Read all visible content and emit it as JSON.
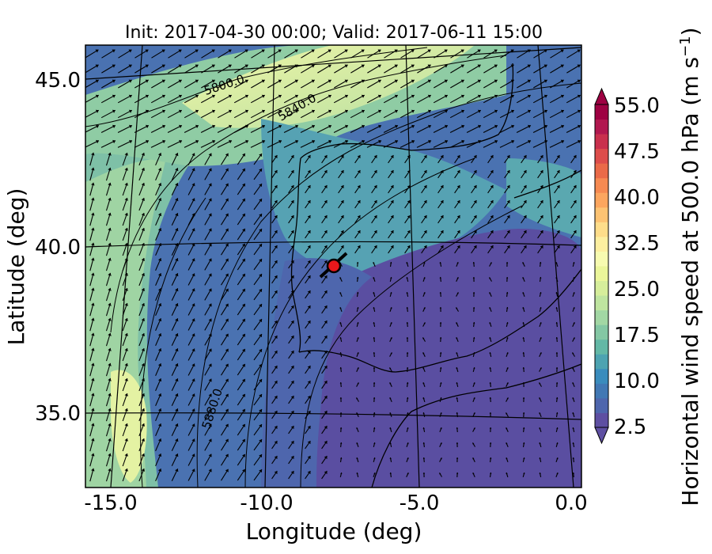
{
  "figure": {
    "title": "Init: 2017-04-30 00:00; Valid: 2017-06-11 15:00",
    "xlabel": "Longitude (deg)",
    "ylabel": "Latitude (deg)"
  },
  "map": {
    "x_ticks": [
      "-15.0",
      "-10.0",
      "-5.0",
      "0.0"
    ],
    "y_ticks": [
      "45.0",
      "40.0",
      "35.0"
    ],
    "contours": [
      "5800.0",
      "5840.0",
      "5880.0"
    ],
    "marker": {
      "color": "#e8181b",
      "description": "Lisbon area point"
    }
  },
  "colorbar": {
    "label": "Horizontal wind speed at 500.0 hPa (m s",
    "unit_exp": "−1",
    "label_end": ")",
    "ticks": [
      "2.5",
      "10.0",
      "17.5",
      "25.0",
      "32.5",
      "40.0",
      "47.5",
      "55.0"
    ],
    "colors": [
      "#5e4fa2",
      "#4e66ad",
      "#4178b4",
      "#3a8cbd",
      "#4da3b1",
      "#63b8a6",
      "#84c7a4",
      "#a2d7a4",
      "#bfe5a0",
      "#d6ee9b",
      "#ebf69a",
      "#f7fbb0",
      "#fdefa0",
      "#fedd8a",
      "#fdc373",
      "#fca65f",
      "#f68a52",
      "#ea6a48",
      "#dd4d4b",
      "#c9304d",
      "#b1184f",
      "#9e0142"
    ]
  },
  "palette": {
    "deep": "#5a4ea1",
    "blue": "#4a6bb0",
    "teal": "#5aa8b0",
    "green": "#86c6a3",
    "lightgreen": "#b7dfa2",
    "yellow": "#eef5a6"
  }
}
